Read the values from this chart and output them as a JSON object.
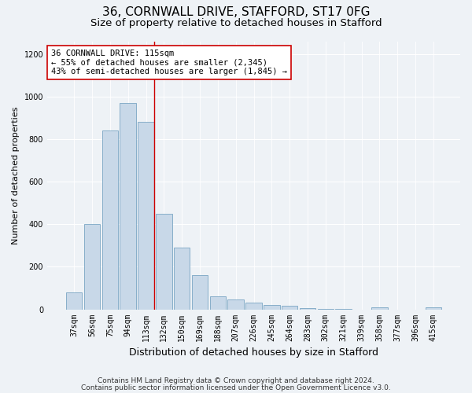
{
  "title1": "36, CORNWALL DRIVE, STAFFORD, ST17 0FG",
  "title2": "Size of property relative to detached houses in Stafford",
  "xlabel": "Distribution of detached houses by size in Stafford",
  "ylabel": "Number of detached properties",
  "footnote1": "Contains HM Land Registry data © Crown copyright and database right 2024.",
  "footnote2": "Contains public sector information licensed under the Open Government Licence v3.0.",
  "categories": [
    "37sqm",
    "56sqm",
    "75sqm",
    "94sqm",
    "113sqm",
    "132sqm",
    "150sqm",
    "169sqm",
    "188sqm",
    "207sqm",
    "226sqm",
    "245sqm",
    "264sqm",
    "283sqm",
    "302sqm",
    "321sqm",
    "339sqm",
    "358sqm",
    "377sqm",
    "396sqm",
    "415sqm"
  ],
  "values": [
    80,
    400,
    840,
    970,
    880,
    450,
    290,
    160,
    60,
    45,
    30,
    20,
    15,
    5,
    3,
    2,
    0,
    10,
    0,
    0,
    10
  ],
  "bar_color": "#c8d8e8",
  "bar_edge_color": "#6699bb",
  "background_color": "#eef2f6",
  "marker_category_index": 4,
  "marker_line_color": "#cc0000",
  "annotation_text": "36 CORNWALL DRIVE: 115sqm\n← 55% of detached houses are smaller (2,345)\n43% of semi-detached houses are larger (1,845) →",
  "annotation_box_color": "#ffffff",
  "annotation_box_edge_color": "#cc0000",
  "ylim": [
    0,
    1260
  ],
  "yticks": [
    0,
    200,
    400,
    600,
    800,
    1000,
    1200
  ],
  "title1_fontsize": 11,
  "title2_fontsize": 9.5,
  "xlabel_fontsize": 9,
  "ylabel_fontsize": 8,
  "annotation_fontsize": 7.5,
  "tick_fontsize": 7,
  "footnote_fontsize": 6.5
}
